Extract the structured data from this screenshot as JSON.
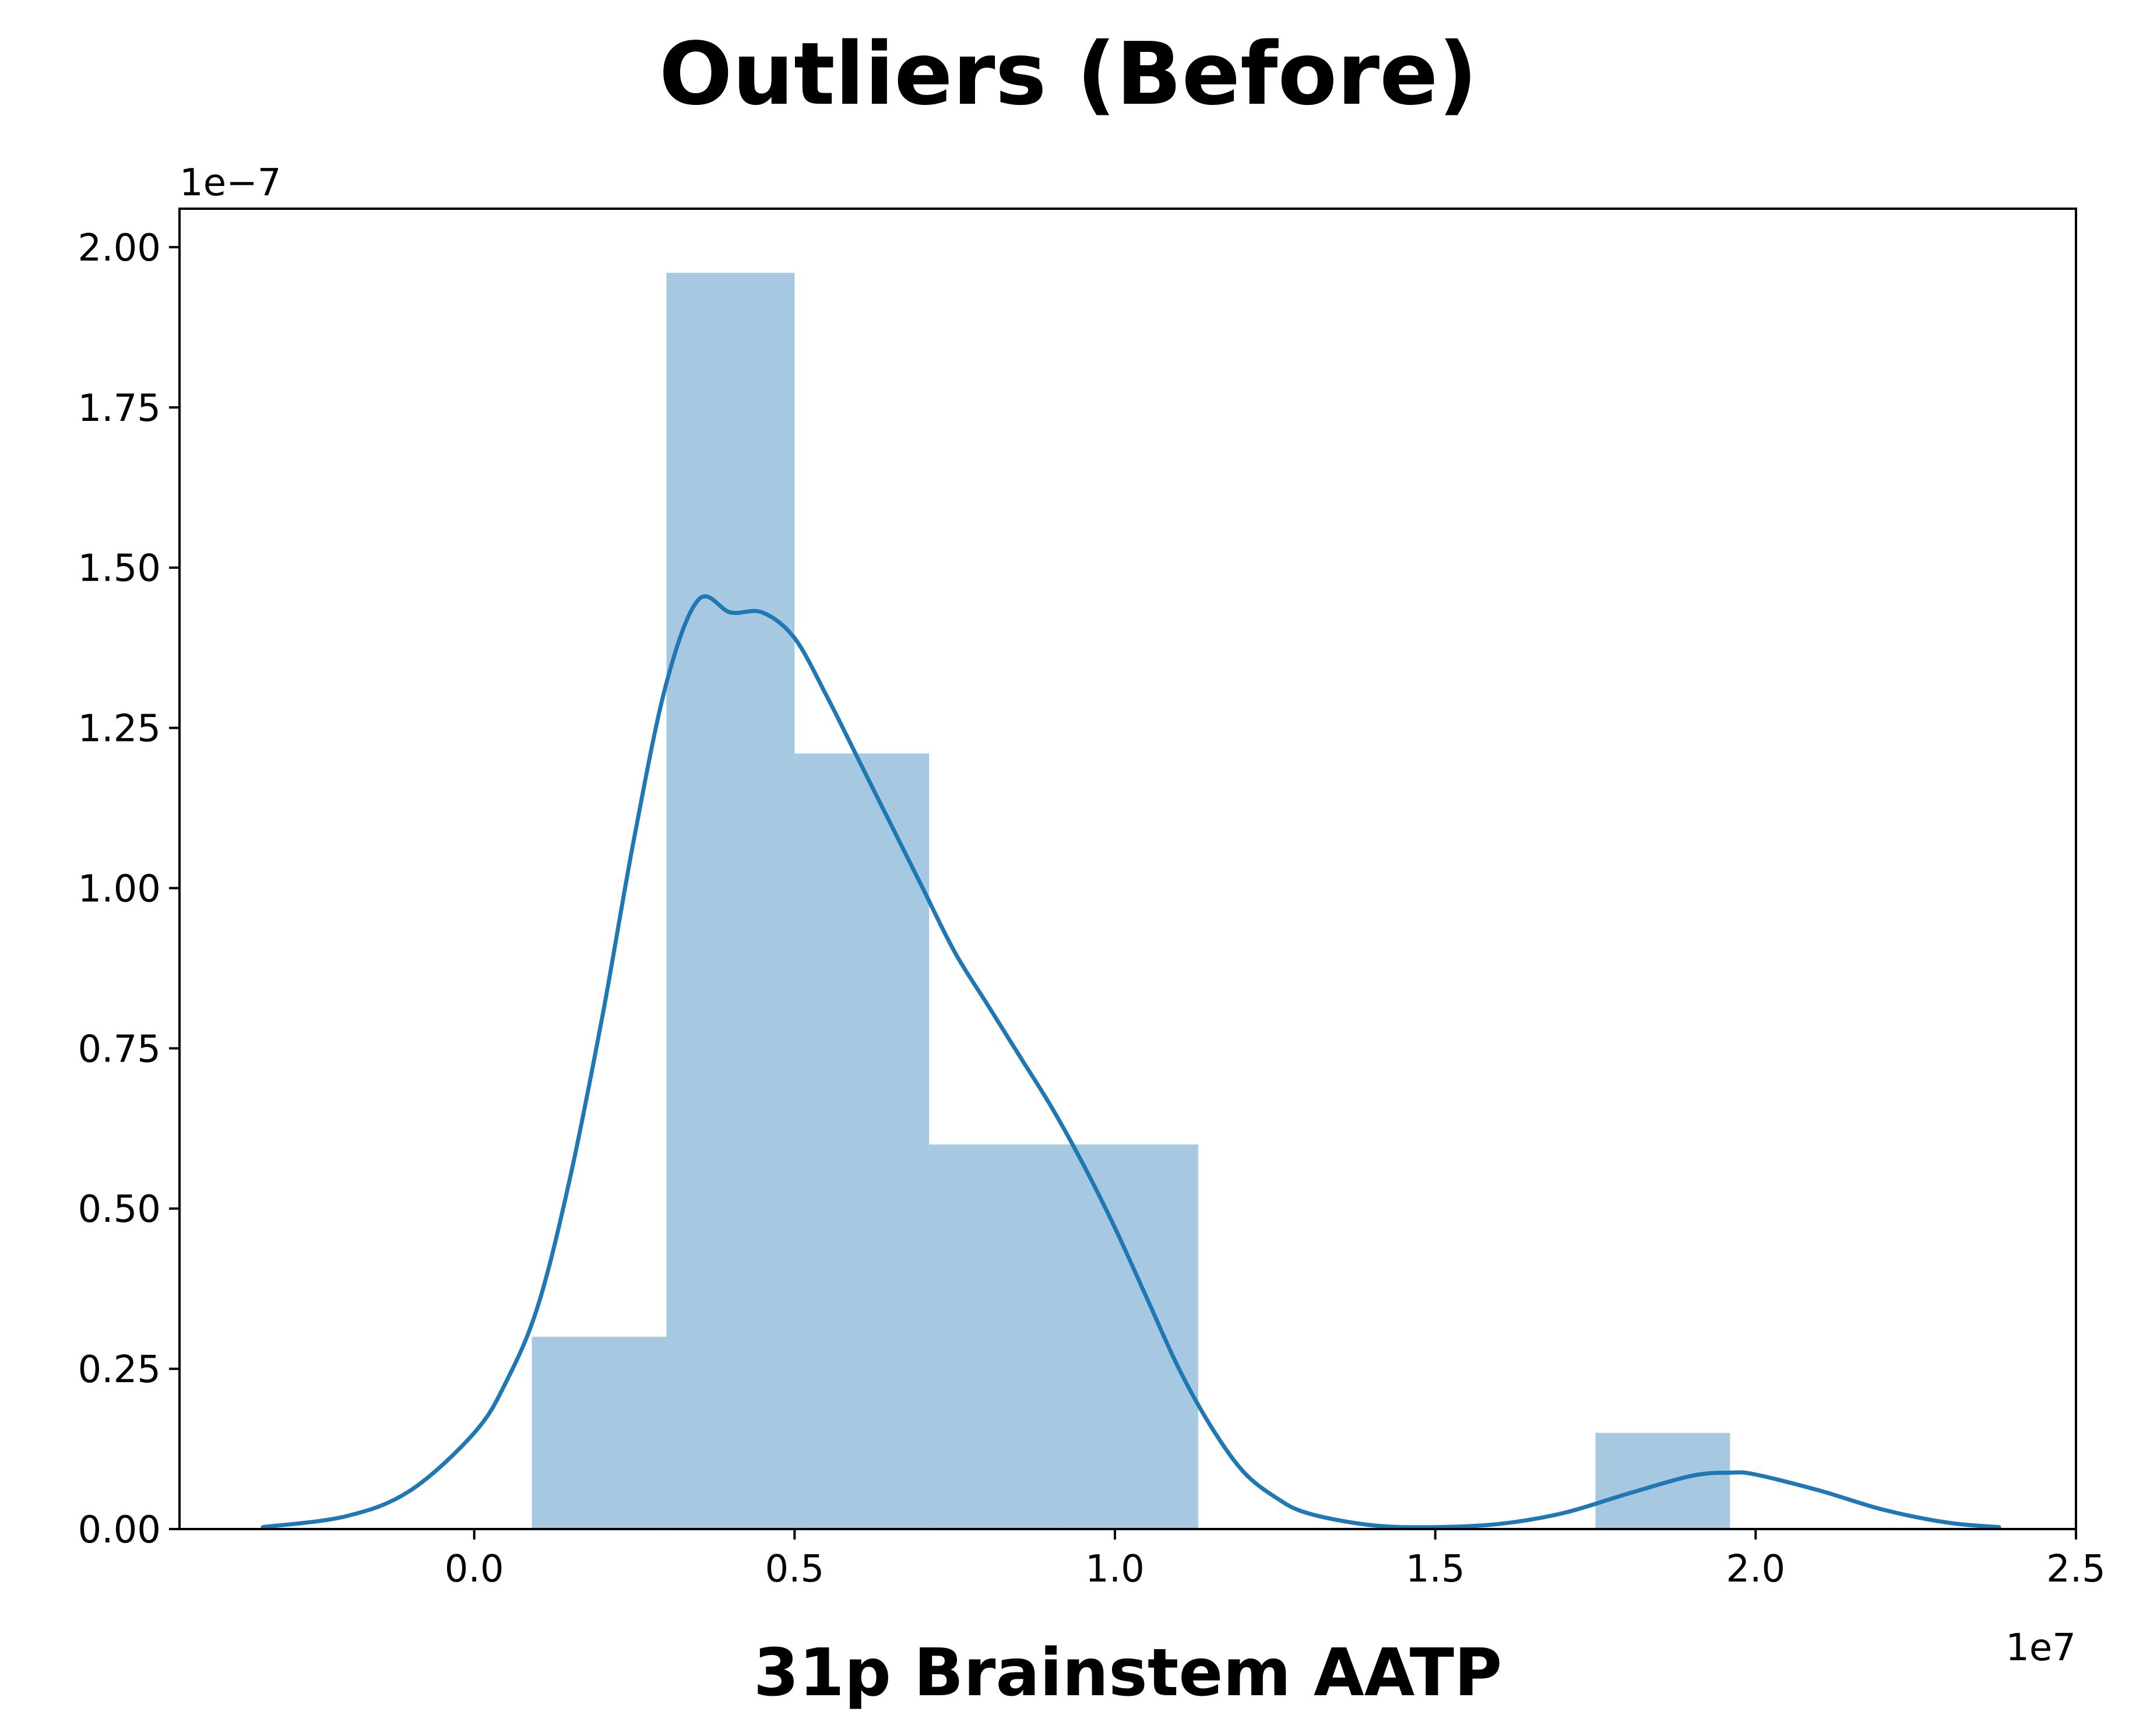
{
  "chart_data": {
    "type": "bar",
    "subtype": "histogram with kde",
    "title": "Outliers (Before)",
    "xlabel": "31p Brainstem AATP",
    "ylabel": "",
    "x_offset_label": "1e7",
    "y_offset_label": "1e−7",
    "xlim": [
      -0.46,
      2.5
    ],
    "ylim": [
      0,
      2.06
    ],
    "x_ticks": [
      "0.0",
      "0.5",
      "1.0",
      "1.5",
      "2.0",
      "2.5"
    ],
    "y_ticks": [
      "0.00",
      "0.25",
      "0.50",
      "0.75",
      "1.00",
      "1.25",
      "1.50",
      "1.75",
      "2.00"
    ],
    "grid": false,
    "legend": "none",
    "bar_color": "#a6c8e0",
    "line_color": "#1f77b4",
    "bins": [
      {
        "start": 0.09,
        "end": 0.3,
        "value": 0.3
      },
      {
        "start": 0.3,
        "end": 0.5,
        "value": 1.96
      },
      {
        "start": 0.5,
        "end": 0.71,
        "value": 1.21
      },
      {
        "start": 0.71,
        "end": 0.92,
        "value": 0.6
      },
      {
        "start": 0.92,
        "end": 1.13,
        "value": 0.6
      },
      {
        "start": 1.13,
        "end": 1.34,
        "value": 0.0
      },
      {
        "start": 1.34,
        "end": 1.55,
        "value": 0.0
      },
      {
        "start": 1.55,
        "end": 1.75,
        "value": 0.0
      },
      {
        "start": 1.75,
        "end": 1.96,
        "value": 0.15
      }
    ],
    "kde": {
      "x": [
        -0.33,
        -0.2,
        -0.1,
        0.0,
        0.05,
        0.1,
        0.15,
        0.2,
        0.25,
        0.3,
        0.35,
        0.4,
        0.45,
        0.5,
        0.55,
        0.6,
        0.65,
        0.7,
        0.75,
        0.8,
        0.85,
        0.9,
        0.95,
        1.0,
        1.05,
        1.1,
        1.15,
        1.2,
        1.25,
        1.3,
        1.4,
        1.5,
        1.6,
        1.7,
        1.8,
        1.9,
        1.96,
        2.0,
        2.1,
        2.2,
        2.3,
        2.38
      ],
      "y": [
        0.003,
        0.02,
        0.06,
        0.15,
        0.23,
        0.35,
        0.55,
        0.8,
        1.08,
        1.32,
        1.45,
        1.43,
        1.43,
        1.39,
        1.3,
        1.2,
        1.1,
        1.0,
        0.9,
        0.82,
        0.74,
        0.66,
        0.57,
        0.47,
        0.36,
        0.25,
        0.16,
        0.09,
        0.05,
        0.025,
        0.006,
        0.003,
        0.008,
        0.025,
        0.055,
        0.083,
        0.088,
        0.085,
        0.06,
        0.03,
        0.01,
        0.003
      ]
    }
  }
}
